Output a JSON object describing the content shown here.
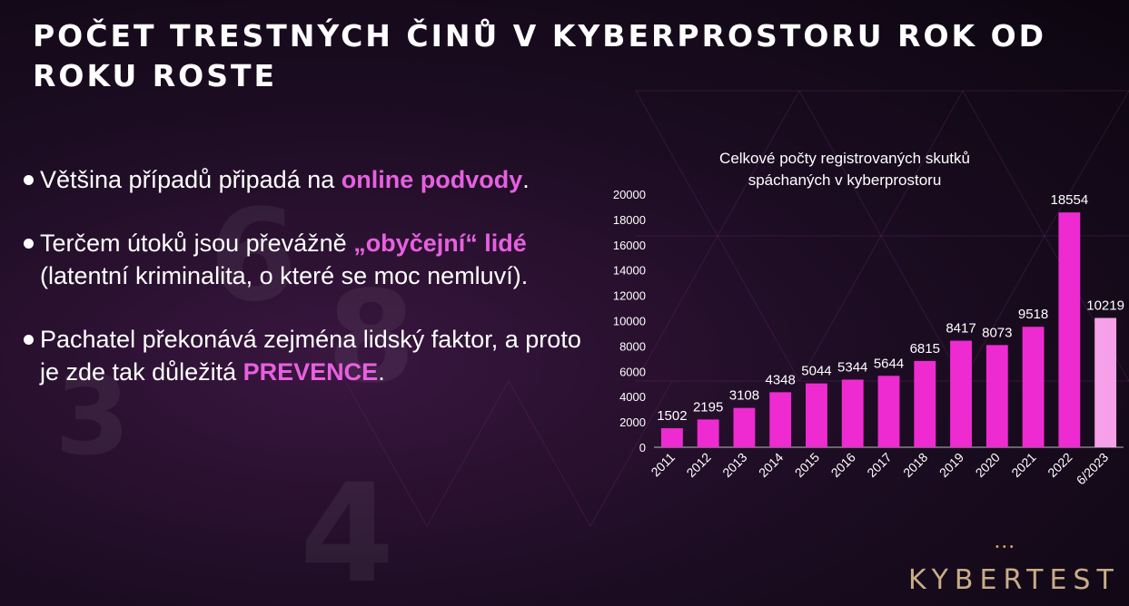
{
  "slide": {
    "title": "Počet trestných činů v kyberprostoru rok od roku roste",
    "bullets": [
      {
        "parts": [
          {
            "text": "Většina případů připadá na ",
            "hl": false
          },
          {
            "text": "online podvody",
            "hl": true
          },
          {
            "text": ".",
            "hl": false
          }
        ]
      },
      {
        "parts": [
          {
            "text": "Terčem útoků jsou převážně ",
            "hl": false
          },
          {
            "text": "„obyčejní“ lidé",
            "hl": true
          },
          {
            "text": " (latentní kriminalita, o které se moc nemluví).",
            "hl": false
          }
        ]
      },
      {
        "parts": [
          {
            "text": "Pachatel překonává zejména lidský faktor, a proto je zde tak důležitá ",
            "hl": false
          },
          {
            "text": "PREVENCE",
            "hl": true
          },
          {
            "text": ".",
            "hl": false
          }
        ]
      }
    ]
  },
  "brand": {
    "dots": "•••",
    "name": "KYBERTEST"
  },
  "colors": {
    "highlight": "#e760e0",
    "bar": "#ee2bd0",
    "bar_last": "#f5a0e8",
    "text": "#ffffff"
  },
  "chart_data": {
    "type": "bar",
    "title_lines": [
      "Celkové počty registrovaných skutků",
      "spáchaných v kyberprostoru"
    ],
    "categories": [
      "2011",
      "2012",
      "2013",
      "2014",
      "2015",
      "2016",
      "2017",
      "2018",
      "2019",
      "2020",
      "2021",
      "2022",
      "6/2023"
    ],
    "values": [
      1502,
      2195,
      3108,
      4348,
      5044,
      5344,
      5644,
      6815,
      8417,
      8073,
      9518,
      18554,
      10219
    ],
    "ylim": [
      0,
      20000
    ],
    "yticks": [
      0,
      2000,
      4000,
      6000,
      8000,
      10000,
      12000,
      14000,
      16000,
      18000,
      20000
    ],
    "grid": false,
    "legend": "none"
  }
}
